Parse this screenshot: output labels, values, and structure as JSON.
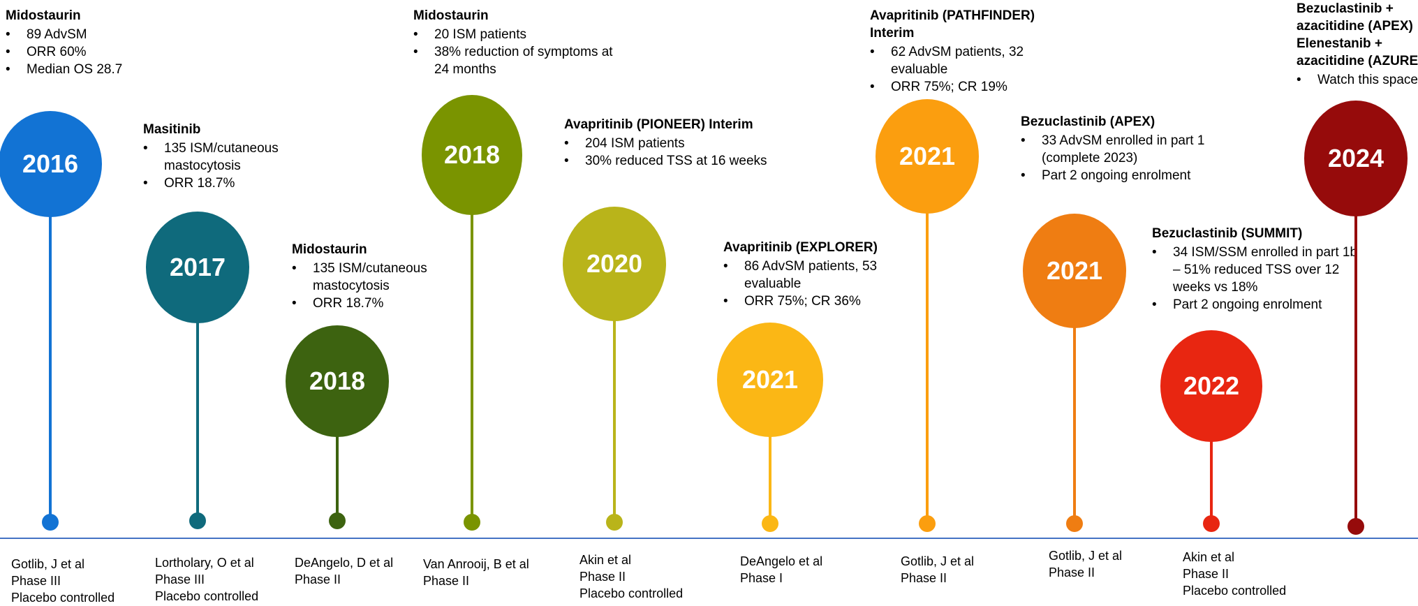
{
  "timeline": [
    {
      "year": "2016",
      "color": "#1273d4",
      "study": "Midostaurin",
      "bullets": [
        "89 AdvSM",
        "ORR 60%",
        "Median OS 28.7"
      ],
      "reference": [
        "Gotlib, J et al",
        "Phase III",
        "Placebo controlled"
      ]
    },
    {
      "year": "2017",
      "color": "#0f6a7c",
      "study": "Masitinib",
      "bullets": [
        "135 ISM/cutaneous mastocytosis",
        "ORR 18.7%"
      ],
      "reference": [
        "Lortholary, O et al",
        "Phase III",
        "Placebo controlled"
      ]
    },
    {
      "year": "2018",
      "color": "#3d6310",
      "study": "Midostaurin",
      "bullets": [
        "135 ISM/cutaneous mastocytosis",
        "ORR 18.7%"
      ],
      "reference": [
        "DeAngelo, D et al",
        "Phase II"
      ]
    },
    {
      "year": "2018",
      "color": "#7a9400",
      "study": "Midostaurin",
      "bullets": [
        "20 ISM patients",
        "38% reduction of symptoms at 24 months"
      ],
      "reference": [
        "Van Anrooij, B et al",
        "Phase II"
      ]
    },
    {
      "year": "2020",
      "color": "#b9b41a",
      "study": "Avapritinib (PIONEER) Interim",
      "bullets": [
        "204 ISM patients",
        "30% reduced TSS at 16 weeks"
      ],
      "reference": [
        "Akin et al",
        "Phase II",
        "Placebo controlled"
      ]
    },
    {
      "year": "2021",
      "color": "#fbb715",
      "study": "Avapritinib (EXPLORER)",
      "bullets": [
        "86 AdvSM patients, 53 evaluable",
        "ORR 75%; CR 36%"
      ],
      "reference": [
        "DeAngelo et al",
        "Phase I"
      ]
    },
    {
      "year": "2021",
      "color": "#fb9e0f",
      "study": "Avapritinib (PATHFINDER)\nInterim",
      "bullets": [
        "62 AdvSM patients, 32 evaluable",
        "ORR 75%; CR 19%"
      ],
      "reference": [
        "Gotlib, J et al",
        "Phase II"
      ]
    },
    {
      "year": "2021",
      "color": "#ef7d12",
      "study": "Bezuclastinib (APEX)",
      "bullets": [
        "33 AdvSM enrolled in part 1 (complete 2023)",
        "Part 2 ongoing enrolment"
      ],
      "reference": [
        "Gotlib, J et al",
        "Phase II"
      ]
    },
    {
      "year": "2022",
      "color": "#e82611",
      "study": "Bezuclastinib (SUMMIT)",
      "bullets": [
        "34 ISM/SSM enrolled in part 1b – 51% reduced TSS over 12 weeks vs 18%",
        "Part 2 ongoing enrolment"
      ],
      "reference": [
        "Akin et al",
        "Phase II",
        "Placebo controlled"
      ]
    },
    {
      "year": "2024",
      "color": "#960b0b",
      "study": "Bezuclastinib +\nazacitidine (APEX)\nElenestanib +\nazacitidine (AZURE)",
      "bullets": [
        "Watch this space"
      ],
      "reference": []
    }
  ]
}
